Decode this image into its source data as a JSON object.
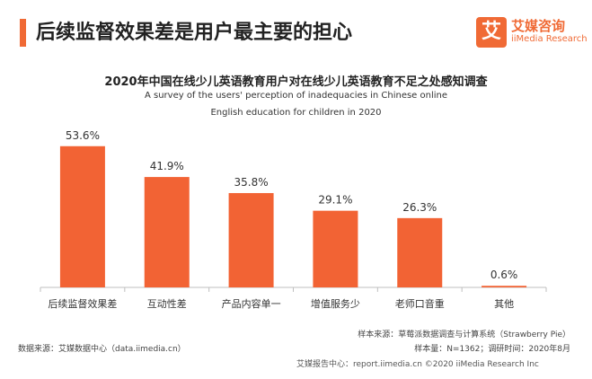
{
  "header": {
    "title": "后续监督效果差是用户最主要的担心",
    "logo_mark": "艾",
    "logo_cn": "艾媒咨询",
    "logo_en": "iiMedia Research"
  },
  "chart_data": {
    "type": "bar",
    "title": "2020年中国在线少儿英语教育用户对在线少儿英语教育不足之处感知调查",
    "subtitle_lines": [
      "A survey of the users' perception of inadequacies in Chinese online",
      "English education for children in 2020"
    ],
    "categories": [
      "后续监督效果差",
      "互动性差",
      "产品内容单一",
      "增值服务少",
      "老师口音重",
      "其他"
    ],
    "values": [
      53.6,
      41.9,
      35.8,
      29.1,
      26.3,
      0.6
    ],
    "data_labels": [
      "53.6%",
      "41.9%",
      "35.8%",
      "29.1%",
      "26.3%",
      "0.6%"
    ],
    "value_unit": "%",
    "ylim": [
      0,
      60
    ],
    "bar_color": "#f26334",
    "grid": false
  },
  "footer": {
    "source": "数据来源：艾媒数据中心（data.iimedia.cn）",
    "sample_source": "样本来源：草莓派数据调查与计算系统（Strawberry Pie）",
    "sample_info": "样本量：N=1362；调研时间：2020年8月",
    "report": "艾媒报告中心：report.iimedia.cn  ©2020  iiMedia Research  Inc"
  }
}
